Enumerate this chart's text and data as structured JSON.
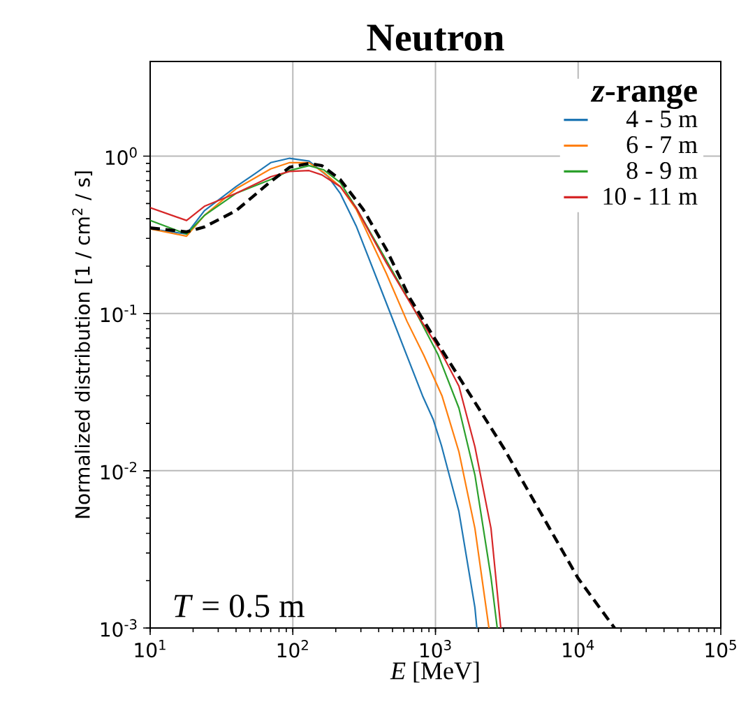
{
  "chart_data": {
    "type": "line",
    "title": "Neutron",
    "xlabel": "*E* [MeV]",
    "ylabel": "Normalized distribution [1 / cm$^{2}$ / s]",
    "legend_title": "*z*-range",
    "series": [
      {
        "name": "4 - 5 m",
        "color": "#1f77b4",
        "x": [
          10,
          18,
          24,
          40,
          55,
          70,
          95,
          130,
          177,
          215,
          278,
          479,
          811,
          962,
          1100,
          1460,
          1890,
          1950
        ],
        "values": [
          0.345,
          0.32,
          0.45,
          0.64,
          0.78,
          0.91,
          0.97,
          0.93,
          0.74,
          0.58,
          0.36,
          0.102,
          0.03,
          0.0213,
          0.0145,
          0.0055,
          0.00135,
          0.001
        ]
      },
      {
        "name": "6 - 7 m",
        "color": "#ff7f0e",
        "x": [
          10,
          18,
          24,
          40,
          70,
          95,
          130,
          164,
          215,
          278,
          452,
          632,
          830,
          1110,
          1460,
          1890,
          2370
        ],
        "values": [
          0.345,
          0.31,
          0.42,
          0.62,
          0.83,
          0.91,
          0.91,
          0.79,
          0.64,
          0.46,
          0.18,
          0.089,
          0.054,
          0.03,
          0.0132,
          0.0043,
          0.001
        ]
      },
      {
        "name": "8 - 9 m",
        "color": "#2ca02c",
        "x": [
          10,
          18,
          24,
          40,
          70,
          95,
          130,
          164,
          215,
          278,
          452,
          741,
          1040,
          1460,
          1890,
          2450,
          2710
        ],
        "values": [
          0.39,
          0.32,
          0.42,
          0.58,
          0.71,
          0.81,
          0.87,
          0.82,
          0.68,
          0.47,
          0.218,
          0.099,
          0.055,
          0.025,
          0.0094,
          0.0021,
          0.001
        ]
      },
      {
        "name": "10 - 11 m",
        "color": "#d62728",
        "x": [
          10,
          18,
          24,
          40,
          70,
          95,
          130,
          160,
          215,
          278,
          452,
          741,
          1070,
          1460,
          1890,
          2450,
          2870
        ],
        "values": [
          0.47,
          0.39,
          0.48,
          0.58,
          0.74,
          0.8,
          0.81,
          0.76,
          0.64,
          0.47,
          0.21,
          0.099,
          0.059,
          0.0345,
          0.0142,
          0.0043,
          0.001
        ]
      },
      {
        "color": "#000000",
        "line_style": "dashed",
        "x": [
          10,
          18,
          24,
          40,
          70,
          95,
          130,
          160,
          215,
          311,
          452,
          662,
          1000,
          3000,
          10000,
          18000
        ],
        "values": [
          0.35,
          0.33,
          0.355,
          0.45,
          0.69,
          0.85,
          0.9,
          0.87,
          0.71,
          0.46,
          0.256,
          0.125,
          0.068,
          0.014,
          0.00207,
          0.001
        ]
      }
    ],
    "log": "xy",
    "xlim": [
      10,
      100000
    ],
    "ylim": [
      0.001,
      4
    ],
    "xticks": [
      {
        "value": 10,
        "label": "10$^{1}$"
      },
      {
        "value": 100,
        "label": "10$^{2}$"
      },
      {
        "value": 1000,
        "label": "10$^{3}$"
      },
      {
        "value": 10000,
        "label": "10$^{4}$"
      },
      {
        "value": 100000,
        "label": "10$^{5}$"
      }
    ],
    "yticks": [
      {
        "value": 0.001,
        "label": "10$^{-3}$"
      },
      {
        "value": 0.01,
        "label": "10$^{-2}$"
      },
      {
        "value": 0.1,
        "label": "10$^{-1}$"
      },
      {
        "value": 1,
        "label": "10$^{0}$"
      }
    ],
    "grid": true,
    "legend": "top right",
    "line_style": "solid",
    "annotations": [
      "*T* = 0.5 m"
    ]
  }
}
